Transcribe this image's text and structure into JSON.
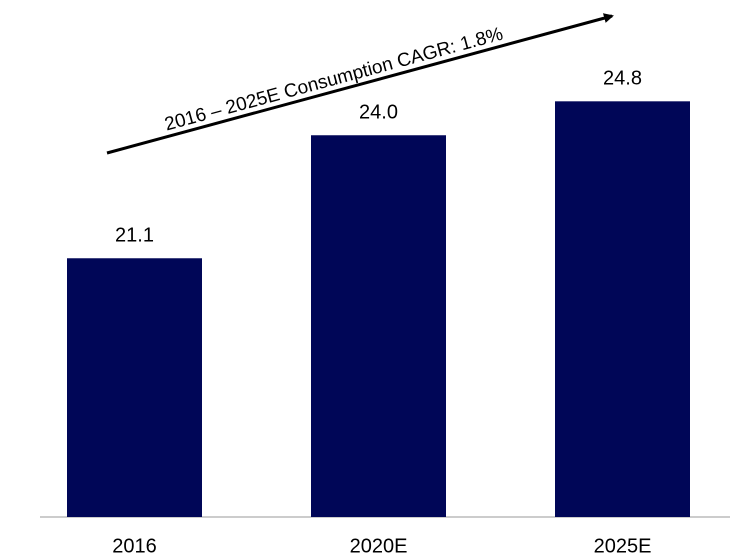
{
  "chart_data": {
    "type": "bar",
    "categories": [
      "2016",
      "2020E",
      "2025E"
    ],
    "values": [
      21.1,
      24.0,
      24.8
    ],
    "value_labels": [
      "21.1",
      "24.0",
      "24.8"
    ],
    "color": "#000657",
    "ylim": [
      15,
      27
    ],
    "annotation": "2016 – 2025E Consumption CAGR: 1.8%"
  }
}
